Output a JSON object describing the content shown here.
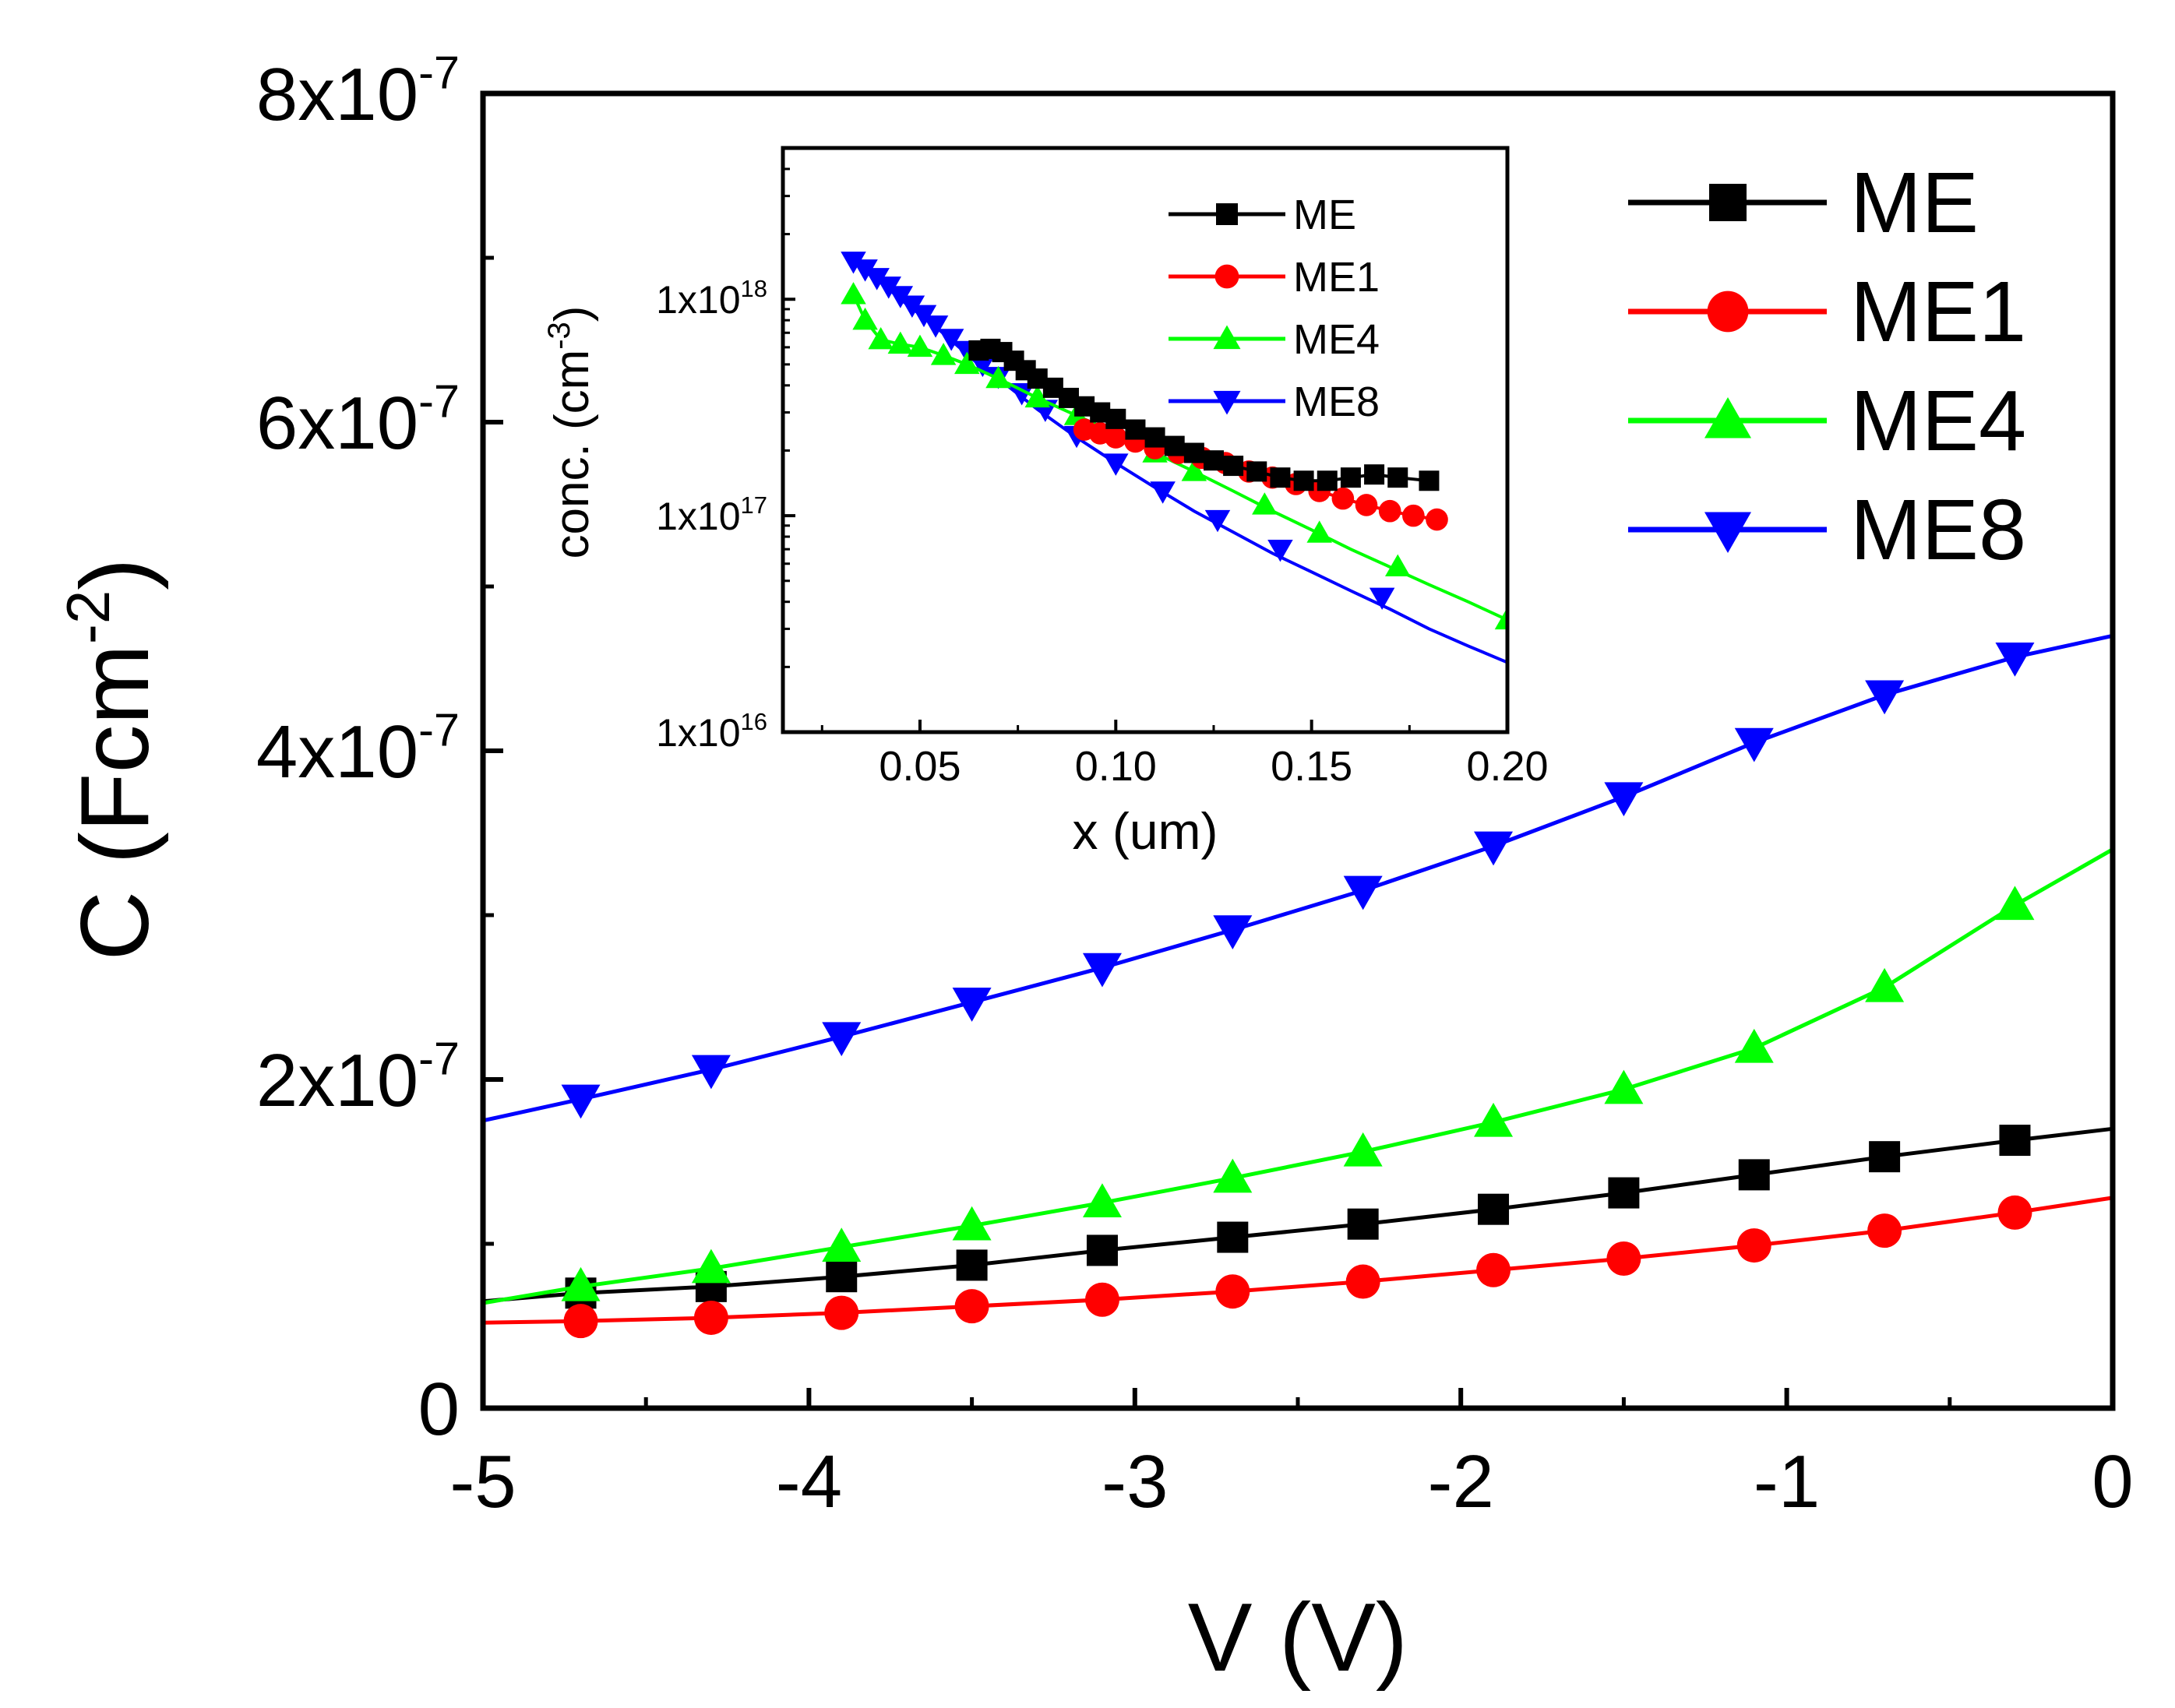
{
  "chart_data": [
    {
      "id": "main",
      "type": "line",
      "title": "",
      "xlabel": "V (V)",
      "ylabel_base": "C (Fcm",
      "ylabel_sup": "-2",
      "ylabel_tail": ")",
      "xlim": [
        -5,
        0
      ],
      "ylim": [
        0,
        8e-07
      ],
      "grid": false,
      "legend_position": "top-right",
      "x_ticks": [
        {
          "value": -5,
          "label": "-5"
        },
        {
          "value": -4,
          "label": "-4"
        },
        {
          "value": -3,
          "label": "-3"
        },
        {
          "value": -2,
          "label": "-2"
        },
        {
          "value": -1,
          "label": "-1"
        },
        {
          "value": 0,
          "label": "0"
        }
      ],
      "y_ticks": [
        {
          "value": 0,
          "base": "0",
          "sup": ""
        },
        {
          "value": 2e-07,
          "base": "2x10",
          "sup": "-7"
        },
        {
          "value": 4e-07,
          "base": "4x10",
          "sup": "-7"
        },
        {
          "value": 6e-07,
          "base": "6x10",
          "sup": "-7"
        },
        {
          "value": 8e-07,
          "base": "8x10",
          "sup": "-7"
        }
      ],
      "series": [
        {
          "name": "ME",
          "color": "#000000",
          "marker": "square",
          "line_x": [
            -5,
            -4.7,
            -4.3,
            -3.9,
            -3.5,
            -3.1,
            -2.7,
            -2.3,
            -1.9,
            -1.5,
            -1.1,
            -0.7,
            -0.3,
            0
          ],
          "line_y": [
            6.5e-08,
            7e-08,
            7.4e-08,
            8e-08,
            8.7e-08,
            9.6e-08,
            1.04e-07,
            1.12e-07,
            1.21e-07,
            1.31e-07,
            1.42e-07,
            1.53e-07,
            1.63e-07,
            1.7e-07
          ],
          "marker_x": [
            -4.7,
            -4.3,
            -3.9,
            -3.5,
            -3.1,
            -2.7,
            -2.3,
            -1.9,
            -1.5,
            -1.1,
            -0.7,
            -0.3
          ]
        },
        {
          "name": "ME1",
          "color": "#ff0000",
          "marker": "circle",
          "line_x": [
            -5,
            -4.7,
            -4.3,
            -3.9,
            -3.5,
            -3.1,
            -2.7,
            -2.3,
            -1.9,
            -1.5,
            -1.1,
            -0.7,
            -0.3,
            0
          ],
          "line_y": [
            5.2e-08,
            5.3e-08,
            5.5e-08,
            5.8e-08,
            6.2e-08,
            6.6e-08,
            7.1e-08,
            7.7e-08,
            8.4e-08,
            9.1e-08,
            9.9e-08,
            1.08e-07,
            1.19e-07,
            1.28e-07
          ],
          "marker_x": [
            -4.7,
            -4.3,
            -3.9,
            -3.5,
            -3.1,
            -2.7,
            -2.3,
            -1.9,
            -1.5,
            -1.1,
            -0.7,
            -0.3
          ]
        },
        {
          "name": "ME4",
          "color": "#00ff00",
          "marker": "triangle-up",
          "line_x": [
            -5,
            -4.7,
            -4.3,
            -3.9,
            -3.5,
            -3.1,
            -2.7,
            -2.3,
            -1.9,
            -1.5,
            -1.1,
            -0.7,
            -0.3,
            0
          ],
          "line_y": [
            6.4e-08,
            7.4e-08,
            8.5e-08,
            9.8e-08,
            1.11e-07,
            1.25e-07,
            1.4e-07,
            1.56e-07,
            1.74e-07,
            1.94e-07,
            2.19e-07,
            2.56e-07,
            3.06e-07,
            3.4e-07
          ],
          "marker_x": [
            -4.7,
            -4.3,
            -3.9,
            -3.5,
            -3.1,
            -2.7,
            -2.3,
            -1.9,
            -1.5,
            -1.1,
            -0.7,
            -0.3
          ]
        },
        {
          "name": "ME8",
          "color": "#0000ff",
          "marker": "triangle-down",
          "line_x": [
            -5,
            -4.7,
            -4.3,
            -3.9,
            -3.5,
            -3.1,
            -2.7,
            -2.3,
            -1.9,
            -1.5,
            -1.1,
            -0.7,
            -0.3,
            0
          ],
          "line_y": [
            1.75e-07,
            1.88e-07,
            2.06e-07,
            2.26e-07,
            2.47e-07,
            2.68e-07,
            2.91e-07,
            3.15e-07,
            3.42e-07,
            3.72e-07,
            4.05e-07,
            4.34e-07,
            4.57e-07,
            4.7e-07
          ],
          "marker_x": [
            -4.7,
            -4.3,
            -3.9,
            -3.5,
            -3.1,
            -2.7,
            -2.3,
            -1.9,
            -1.5,
            -1.1,
            -0.7,
            -0.3
          ]
        }
      ]
    },
    {
      "id": "inset",
      "type": "line",
      "title": "",
      "xlabel": "x (um)",
      "ylabel_base": "conc. (cm",
      "ylabel_sup": "-3",
      "ylabel_tail": ")",
      "xlim": [
        0.015,
        0.2
      ],
      "ylim": [
        1e+16,
        5e+18
      ],
      "y_scale": "log",
      "grid": false,
      "legend_position": "top-right",
      "x_ticks": [
        {
          "value": 0.05,
          "label": "0.05"
        },
        {
          "value": 0.1,
          "label": "0.10"
        },
        {
          "value": 0.15,
          "label": "0.15"
        },
        {
          "value": 0.2,
          "label": "0.20"
        }
      ],
      "y_ticks": [
        {
          "value": 1e+16,
          "base": "1x10",
          "sup": "16"
        },
        {
          "value": 1e+17,
          "base": "1x10",
          "sup": "17"
        },
        {
          "value": 1e+18,
          "base": "1x10",
          "sup": "18"
        }
      ],
      "series": [
        {
          "name": "ME",
          "color": "#000000",
          "marker": "square",
          "x": [
            0.065,
            0.068,
            0.071,
            0.074,
            0.077,
            0.08,
            0.084,
            0.088,
            0.092,
            0.096,
            0.1,
            0.105,
            0.11,
            0.115,
            0.12,
            0.125,
            0.13,
            0.136,
            0.142,
            0.148,
            0.154,
            0.16,
            0.166,
            0.172,
            0.18
          ],
          "y": [
            5.8e+17,
            5.9e+17,
            5.7e+17,
            5.2e+17,
            4.7e+17,
            4.3e+17,
            3.9e+17,
            3.5e+17,
            3.2e+17,
            3e+17,
            2.8e+17,
            2.5e+17,
            2.3e+17,
            2.1e+17,
            1.95e+17,
            1.8e+17,
            1.7e+17,
            1.6e+17,
            1.5e+17,
            1.45e+17,
            1.45e+17,
            1.5e+17,
            1.55e+17,
            1.5e+17,
            1.45e+17
          ]
        },
        {
          "name": "ME1",
          "color": "#ff0000",
          "marker": "circle",
          "x": [
            0.092,
            0.096,
            0.1,
            0.105,
            0.11,
            0.116,
            0.122,
            0.128,
            0.134,
            0.14,
            0.146,
            0.152,
            0.158,
            0.164,
            0.17,
            0.176,
            0.182
          ],
          "y": [
            2.5e+17,
            2.4e+17,
            2.3e+17,
            2.2e+17,
            2.05e+17,
            1.95e+17,
            1.85e+17,
            1.75e+17,
            1.6e+17,
            1.5e+17,
            1.4e+17,
            1.3e+17,
            1.2e+17,
            1.12e+17,
            1.05e+17,
            1e+17,
            9.6e+16
          ]
        },
        {
          "name": "ME4",
          "color": "#00ff00",
          "marker": "triangle-up",
          "line_x": [
            0.033,
            0.036,
            0.04,
            0.045,
            0.05,
            0.056,
            0.062,
            0.07,
            0.08,
            0.09,
            0.1,
            0.11,
            0.12,
            0.13,
            0.14,
            0.15,
            0.16,
            0.17,
            0.18,
            0.19,
            0.2
          ],
          "line_y": [
            1.05e+18,
            8e+17,
            6.5e+17,
            6.2e+17,
            6e+17,
            5.5e+17,
            5e+17,
            4.3e+17,
            3.5e+17,
            2.9e+17,
            2.4e+17,
            1.95e+17,
            1.6e+17,
            1.3e+17,
            1.05e+17,
            8.6e+16,
            7e+16,
            5.8e+16,
            4.8e+16,
            4e+16,
            3.3e+16
          ],
          "marker_x": [
            0.033,
            0.036,
            0.04,
            0.045,
            0.05,
            0.056,
            0.062,
            0.07,
            0.08,
            0.09,
            0.1,
            0.11,
            0.12,
            0.138,
            0.152,
            0.172,
            0.2
          ],
          "marker_y": [
            1.05e+18,
            8e+17,
            6.5e+17,
            6.2e+17,
            6e+17,
            5.5e+17,
            5e+17,
            4.3e+17,
            3.5e+17,
            2.9e+17,
            2.4e+17,
            1.95e+17,
            1.6e+17,
            1.12e+17,
            8.3e+16,
            5.8e+16,
            3.3e+16
          ]
        },
        {
          "name": "ME8",
          "color": "#0000ff",
          "marker": "triangle-down",
          "line_x": [
            0.033,
            0.036,
            0.04,
            0.045,
            0.05,
            0.055,
            0.06,
            0.065,
            0.07,
            0.08,
            0.09,
            0.1,
            0.11,
            0.12,
            0.13,
            0.14,
            0.15,
            0.16,
            0.17,
            0.18,
            0.19,
            0.2
          ],
          "line_y": [
            1.5e+18,
            1.35e+18,
            1.2e+18,
            1e+18,
            8.5e+17,
            7.2e+17,
            6e+17,
            5e+17,
            4.3e+17,
            3.1e+17,
            2.3e+17,
            1.75e+17,
            1.35e+17,
            1.05e+17,
            8.4e+16,
            6.7e+16,
            5.5e+16,
            4.5e+16,
            3.7e+16,
            3e+16,
            2.5e+16,
            2.1e+16
          ],
          "marker_x": [
            0.033,
            0.036,
            0.039,
            0.042,
            0.045,
            0.048,
            0.051,
            0.054,
            0.058,
            0.062,
            0.066,
            0.07,
            0.076,
            0.082,
            0.09,
            0.1,
            0.112,
            0.126,
            0.142,
            0.168
          ],
          "marker_y": [
            1.5e+18,
            1.38e+18,
            1.26e+18,
            1.15e+18,
            1.04e+18,
            9.4e+17,
            8.5e+17,
            7.6e+17,
            6.6e+17,
            5.8e+17,
            5e+17,
            4.4e+17,
            3.7e+17,
            3.1e+17,
            2.35e+17,
            1.75e+17,
            1.3e+17,
            9.6e+16,
            7e+16,
            4.2e+16
          ]
        }
      ]
    }
  ]
}
